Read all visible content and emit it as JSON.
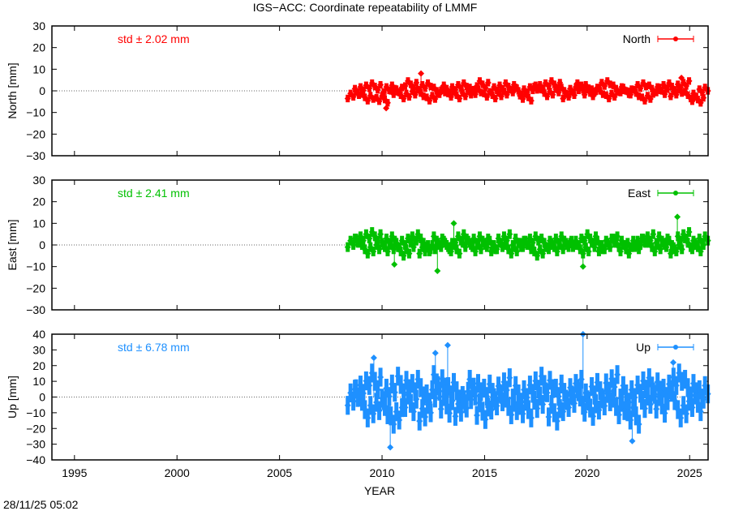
{
  "title": "IGS−ACC: Coordinate repeatability of LMMF",
  "timestamp": "28/11/25 05:02",
  "chart_data": [
    {
      "type": "scatter",
      "ylabel": "North [mm]",
      "legend": "North",
      "legend_placement": "top-right",
      "annotation": "std ± 2.02 mm",
      "color": "#ff0000",
      "ylim": [
        -30,
        30
      ],
      "yticks": [
        30,
        20,
        10,
        0,
        -10,
        -20,
        -30
      ],
      "err": 3.5,
      "y": [
        -2,
        1,
        -3,
        2,
        -4,
        1,
        0,
        -2,
        3,
        -1,
        2,
        -3,
        0,
        1,
        -2,
        2,
        -1,
        0,
        3,
        -2,
        1,
        -1,
        2,
        0,
        -3,
        1,
        2,
        -1,
        3,
        0,
        -2,
        1,
        2,
        -1,
        0,
        3,
        -2,
        1,
        0,
        -1,
        2,
        -3,
        1,
        0,
        2,
        -1,
        3,
        -2,
        -4,
        0
      ],
      "outliers": [
        [
          2010.2,
          -8
        ],
        [
          2011.9,
          8
        ],
        [
          2024.6,
          6
        ]
      ]
    },
    {
      "type": "scatter",
      "ylabel": "East [mm]",
      "legend": "East",
      "legend_placement": "top-right",
      "annotation": "std ± 2.41 mm",
      "color": "#00c000",
      "ylim": [
        -30,
        30
      ],
      "yticks": [
        30,
        20,
        10,
        0,
        -10,
        -20,
        -30
      ],
      "err": 4.5,
      "y": [
        1,
        3,
        -2,
        4,
        -1,
        2,
        0,
        -3,
        1,
        3,
        -2,
        -1,
        2,
        0,
        -2,
        3,
        1,
        -1,
        2,
        0,
        -1,
        3,
        -2,
        1,
        0,
        2,
        -3,
        1,
        -1,
        2,
        0,
        1,
        -2,
        3,
        0,
        -1,
        2,
        1,
        -2,
        0,
        1,
        3,
        -1,
        2,
        0,
        -2,
        4,
        1,
        -1,
        2
      ],
      "outliers": [
        [
          2012.7,
          -12
        ],
        [
          2019.8,
          -10
        ],
        [
          2024.4,
          13
        ],
        [
          2010.6,
          -9
        ],
        [
          2013.5,
          10
        ]
      ]
    },
    {
      "type": "scatter",
      "ylabel": "Up [mm]",
      "legend": "Up",
      "legend_placement": "top-right",
      "annotation": "std ± 6.78 mm",
      "color": "#1e90ff",
      "ylim": [
        -40,
        40
      ],
      "yticks": [
        40,
        30,
        20,
        10,
        0,
        -10,
        -20,
        -30,
        -40
      ],
      "err": 12,
      "y": [
        0,
        5,
        -8,
        10,
        -6,
        3,
        -12,
        8,
        -4,
        6,
        -10,
        2,
        9,
        -5,
        4,
        -7,
        1,
        6,
        -9,
        3,
        -3,
        7,
        -6,
        2,
        -8,
        5,
        -2,
        8,
        -10,
        3,
        -4,
        6,
        0,
        -7,
        4,
        -3,
        9,
        -6,
        2,
        -12,
        5,
        -2,
        7,
        -5,
        3,
        10,
        -8,
        6,
        -4,
        2
      ],
      "outliers": [
        [
          2013.2,
          33
        ],
        [
          2010.4,
          -32
        ],
        [
          2019.8,
          40
        ],
        [
          2012.6,
          28
        ],
        [
          2022.2,
          -28
        ],
        [
          2009.6,
          25
        ],
        [
          2024.2,
          22
        ]
      ]
    }
  ],
  "x": [
    2008.6,
    2008.95,
    2009.3,
    2009.65,
    2010.0,
    2010.35,
    2010.7,
    2011.05,
    2011.4,
    2011.75,
    2012.1,
    2012.45,
    2012.8,
    2013.15,
    2013.5,
    2013.85,
    2014.2,
    2014.55,
    2014.9,
    2015.25,
    2015.6,
    2015.95,
    2016.3,
    2016.65,
    2017.0,
    2017.35,
    2017.7,
    2018.05,
    2018.4,
    2018.75,
    2019.1,
    2019.45,
    2019.8,
    2020.15,
    2020.5,
    2020.85,
    2021.2,
    2021.55,
    2021.9,
    2022.25,
    2022.6,
    2022.95,
    2023.3,
    2023.65,
    2024.0,
    2024.35,
    2024.7,
    2025.05,
    2025.4,
    2025.75
  ],
  "xlabel": "YEAR",
  "xlim": [
    1993.9,
    2025.9
  ],
  "xticks": [
    1995,
    2000,
    2005,
    2010,
    2015,
    2020,
    2025
  ],
  "zero_line": "dotted"
}
